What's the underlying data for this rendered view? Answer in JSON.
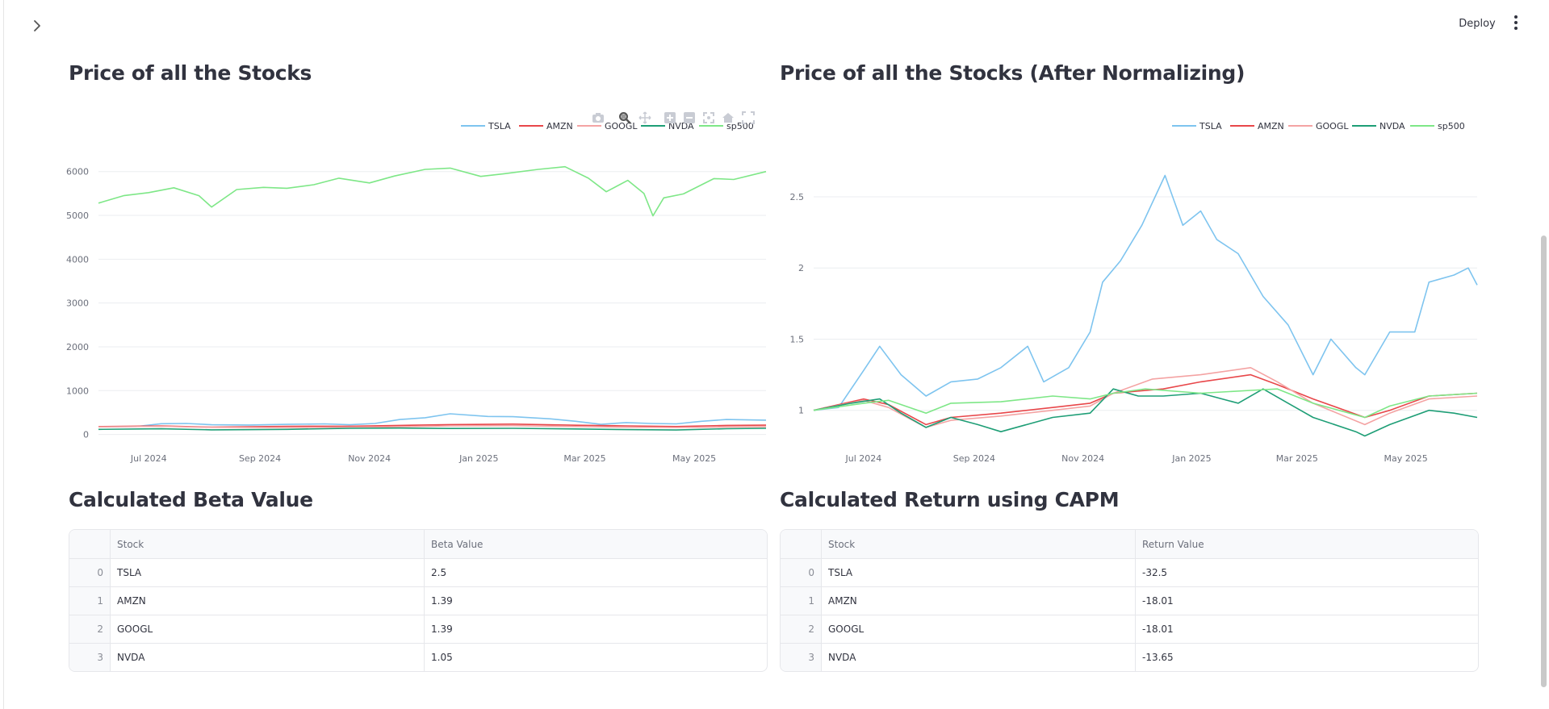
{
  "header": {
    "deploy_label": "Deploy"
  },
  "colors": {
    "TSLA": "#7ec4ef",
    "AMZN": "#e8474a",
    "GOOGL": "#f4a3a3",
    "NVDA": "#1e9e76",
    "sp500": "#7ee787"
  },
  "icons": {
    "sidebar_toggle": "chevron-right-icon",
    "menu": "vertical-dots-icon",
    "modebar": [
      "camera-icon",
      "zoom-icon",
      "pan-icon",
      "zoom-in-icon",
      "zoom-out-icon",
      "autoscale-icon",
      "reset-axes-icon",
      "fullscreen-icon"
    ]
  },
  "sections": {
    "price_title": "Price of all the Stocks",
    "norm_title": "Price of all the Stocks (After Normalizing)",
    "beta_title": "Calculated Beta Value",
    "capm_title": "Calculated Return using CAPM"
  },
  "beta_table": {
    "columns": [
      "",
      "Stock",
      "Beta Value"
    ],
    "rows": [
      [
        "0",
        "TSLA",
        "2.5"
      ],
      [
        "1",
        "AMZN",
        "1.39"
      ],
      [
        "2",
        "GOOGL",
        "1.39"
      ],
      [
        "3",
        "NVDA",
        "1.05"
      ]
    ]
  },
  "capm_table": {
    "columns": [
      "",
      "Stock",
      "Return Value"
    ],
    "rows": [
      [
        "0",
        "TSLA",
        "-32.5"
      ],
      [
        "1",
        "AMZN",
        "-18.01"
      ],
      [
        "2",
        "GOOGL",
        "-18.01"
      ],
      [
        "3",
        "NVDA",
        "-13.65"
      ]
    ]
  },
  "chart_data": [
    {
      "type": "line",
      "title": "Price of all the Stocks",
      "legend": "top-right",
      "grid": true,
      "xlim": [
        "2024-06-03",
        "2025-06-10"
      ],
      "ylim": [
        -100,
        6400
      ],
      "x_ticks": [
        "Jul 2024",
        "Sep 2024",
        "Nov 2024",
        "Jan 2025",
        "Mar 2025",
        "May 2025"
      ],
      "x_tick_dates": [
        "2024-07-01",
        "2024-09-01",
        "2024-11-01",
        "2025-01-01",
        "2025-03-01",
        "2025-05-01"
      ],
      "y_ticks": [
        "0",
        "1000",
        "2000",
        "3000",
        "4000",
        "5000",
        "6000"
      ],
      "y_tick_values": [
        0,
        1000,
        2000,
        3000,
        4000,
        5000,
        6000
      ],
      "series": [
        {
          "name": "TSLA",
          "x": [
            "2024-06-03",
            "2024-06-24",
            "2024-07-08",
            "2024-07-22",
            "2024-08-05",
            "2024-08-26",
            "2024-09-16",
            "2024-10-07",
            "2024-10-21",
            "2024-11-04",
            "2024-11-18",
            "2024-12-02",
            "2024-12-16",
            "2025-01-06",
            "2025-01-20",
            "2025-02-10",
            "2025-02-24",
            "2025-03-10",
            "2025-03-24",
            "2025-04-07",
            "2025-04-21",
            "2025-05-05",
            "2025-05-19",
            "2025-06-10"
          ],
          "y": [
            175,
            180,
            245,
            250,
            220,
            215,
            230,
            240,
            220,
            250,
            340,
            380,
            470,
            410,
            405,
            355,
            300,
            230,
            270,
            250,
            240,
            300,
            340,
            325
          ]
        },
        {
          "name": "AMZN",
          "x": [
            "2024-06-03",
            "2024-07-08",
            "2024-08-05",
            "2024-09-16",
            "2024-10-21",
            "2024-11-18",
            "2024-12-16",
            "2025-01-20",
            "2025-02-24",
            "2025-03-24",
            "2025-04-21",
            "2025-05-19",
            "2025-06-10"
          ],
          "y": [
            180,
            195,
            165,
            185,
            188,
            205,
            225,
            235,
            210,
            195,
            180,
            205,
            212
          ]
        },
        {
          "name": "GOOGL",
          "x": [
            "2024-06-03",
            "2024-07-08",
            "2024-08-05",
            "2024-09-16",
            "2024-10-21",
            "2024-11-18",
            "2024-12-16",
            "2025-01-20",
            "2025-02-24",
            "2025-03-24",
            "2025-04-21",
            "2025-05-19",
            "2025-06-10"
          ],
          "y": [
            173,
            185,
            162,
            158,
            165,
            175,
            195,
            200,
            180,
            165,
            158,
            170,
            175
          ]
        },
        {
          "name": "NVDA",
          "x": [
            "2024-06-03",
            "2024-07-08",
            "2024-08-05",
            "2024-09-16",
            "2024-10-21",
            "2024-11-18",
            "2024-12-16",
            "2025-01-20",
            "2025-02-24",
            "2025-03-24",
            "2025-04-21",
            "2025-05-19",
            "2025-06-10"
          ],
          "y": [
            115,
            128,
            105,
            115,
            140,
            145,
            135,
            140,
            125,
            110,
            100,
            130,
            140
          ]
        },
        {
          "name": "sp500",
          "x": [
            "2024-06-03",
            "2024-06-17",
            "2024-07-01",
            "2024-07-15",
            "2024-07-29",
            "2024-08-05",
            "2024-08-19",
            "2024-09-03",
            "2024-09-16",
            "2024-10-01",
            "2024-10-15",
            "2024-11-01",
            "2024-11-15",
            "2024-12-02",
            "2024-12-16",
            "2025-01-02",
            "2025-01-15",
            "2025-02-03",
            "2025-02-18",
            "2025-03-03",
            "2025-03-13",
            "2025-03-25",
            "2025-04-03",
            "2025-04-08",
            "2025-04-14",
            "2025-04-25",
            "2025-05-12",
            "2025-05-23",
            "2025-06-10"
          ],
          "y": [
            5280,
            5450,
            5520,
            5630,
            5450,
            5190,
            5590,
            5640,
            5620,
            5700,
            5850,
            5740,
            5900,
            6050,
            6080,
            5890,
            5950,
            6050,
            6110,
            5850,
            5540,
            5800,
            5500,
            4990,
            5400,
            5490,
            5840,
            5820,
            6000
          ]
        }
      ]
    },
    {
      "type": "line",
      "title": "Price of all the Stocks (After Normalizing)",
      "legend": "top-right",
      "grid": true,
      "xlim": [
        "2024-06-03",
        "2025-06-10"
      ],
      "ylim": [
        0.8,
        2.8
      ],
      "x_ticks": [
        "Jul 2024",
        "Sep 2024",
        "Nov 2024",
        "Jan 2025",
        "Mar 2025",
        "May 2025"
      ],
      "x_tick_dates": [
        "2024-07-01",
        "2024-09-01",
        "2024-11-01",
        "2025-01-01",
        "2025-03-01",
        "2025-05-01"
      ],
      "y_ticks": [
        "1",
        "1.5",
        "2",
        "2.5"
      ],
      "y_tick_values": [
        1,
        1.5,
        2,
        2.5
      ],
      "series": [
        {
          "name": "TSLA",
          "x": [
            "2024-06-03",
            "2024-06-17",
            "2024-07-01",
            "2024-07-10",
            "2024-07-22",
            "2024-08-05",
            "2024-08-19",
            "2024-09-03",
            "2024-09-16",
            "2024-10-01",
            "2024-10-10",
            "2024-10-24",
            "2024-11-05",
            "2024-11-12",
            "2024-11-22",
            "2024-12-04",
            "2024-12-17",
            "2024-12-27",
            "2025-01-06",
            "2025-01-15",
            "2025-01-27",
            "2025-02-10",
            "2025-02-24",
            "2025-03-10",
            "2025-03-20",
            "2025-04-03",
            "2025-04-08",
            "2025-04-22",
            "2025-05-06",
            "2025-05-14",
            "2025-05-28",
            "2025-06-05",
            "2025-06-10"
          ],
          "y": [
            1.0,
            1.02,
            1.28,
            1.45,
            1.25,
            1.1,
            1.2,
            1.22,
            1.3,
            1.45,
            1.2,
            1.3,
            1.55,
            1.9,
            2.05,
            2.3,
            2.65,
            2.3,
            2.4,
            2.2,
            2.1,
            1.8,
            1.6,
            1.25,
            1.5,
            1.3,
            1.25,
            1.55,
            1.55,
            1.9,
            1.95,
            2.0,
            1.88
          ]
        },
        {
          "name": "AMZN",
          "x": [
            "2024-06-03",
            "2024-07-01",
            "2024-07-15",
            "2024-08-05",
            "2024-08-19",
            "2024-09-16",
            "2024-10-15",
            "2024-11-05",
            "2024-11-18",
            "2024-12-16",
            "2025-01-06",
            "2025-02-03",
            "2025-02-18",
            "2025-03-10",
            "2025-04-08",
            "2025-04-22",
            "2025-05-14",
            "2025-06-10"
          ],
          "y": [
            1.0,
            1.08,
            1.04,
            0.9,
            0.95,
            0.98,
            1.02,
            1.05,
            1.12,
            1.15,
            1.2,
            1.25,
            1.18,
            1.08,
            0.95,
            1.0,
            1.1,
            1.12
          ]
        },
        {
          "name": "GOOGL",
          "x": [
            "2024-06-03",
            "2024-07-01",
            "2024-07-15",
            "2024-08-05",
            "2024-08-19",
            "2024-09-16",
            "2024-10-15",
            "2024-11-05",
            "2024-11-18",
            "2024-12-10",
            "2025-01-06",
            "2025-02-03",
            "2025-02-18",
            "2025-03-10",
            "2025-04-08",
            "2025-04-22",
            "2025-05-14",
            "2025-06-10"
          ],
          "y": [
            1.0,
            1.07,
            1.02,
            0.88,
            0.93,
            0.96,
            1.0,
            1.03,
            1.12,
            1.22,
            1.25,
            1.3,
            1.2,
            1.05,
            0.9,
            0.98,
            1.08,
            1.1
          ]
        },
        {
          "name": "NVDA",
          "x": [
            "2024-06-03",
            "2024-06-24",
            "2024-07-10",
            "2024-07-22",
            "2024-08-05",
            "2024-08-19",
            "2024-09-03",
            "2024-09-16",
            "2024-10-15",
            "2024-11-05",
            "2024-11-18",
            "2024-12-02",
            "2024-12-16",
            "2025-01-06",
            "2025-01-27",
            "2025-02-10",
            "2025-02-24",
            "2025-03-10",
            "2025-04-03",
            "2025-04-08",
            "2025-04-22",
            "2025-05-14",
            "2025-05-28",
            "2025-06-10"
          ],
          "y": [
            1.0,
            1.05,
            1.08,
            0.98,
            0.88,
            0.95,
            0.9,
            0.85,
            0.95,
            0.98,
            1.15,
            1.1,
            1.1,
            1.12,
            1.05,
            1.15,
            1.05,
            0.95,
            0.85,
            0.82,
            0.9,
            1.0,
            0.98,
            0.95
          ]
        },
        {
          "name": "sp500",
          "x": [
            "2024-06-03",
            "2024-07-01",
            "2024-07-15",
            "2024-08-05",
            "2024-08-19",
            "2024-09-16",
            "2024-10-15",
            "2024-11-05",
            "2024-11-18",
            "2024-12-06",
            "2025-01-06",
            "2025-02-03",
            "2025-02-18",
            "2025-03-10",
            "2025-04-08",
            "2025-04-22",
            "2025-05-14",
            "2025-06-10"
          ],
          "y": [
            1.0,
            1.05,
            1.07,
            0.98,
            1.05,
            1.06,
            1.1,
            1.08,
            1.12,
            1.15,
            1.12,
            1.14,
            1.15,
            1.05,
            0.95,
            1.03,
            1.1,
            1.12
          ]
        }
      ]
    }
  ]
}
